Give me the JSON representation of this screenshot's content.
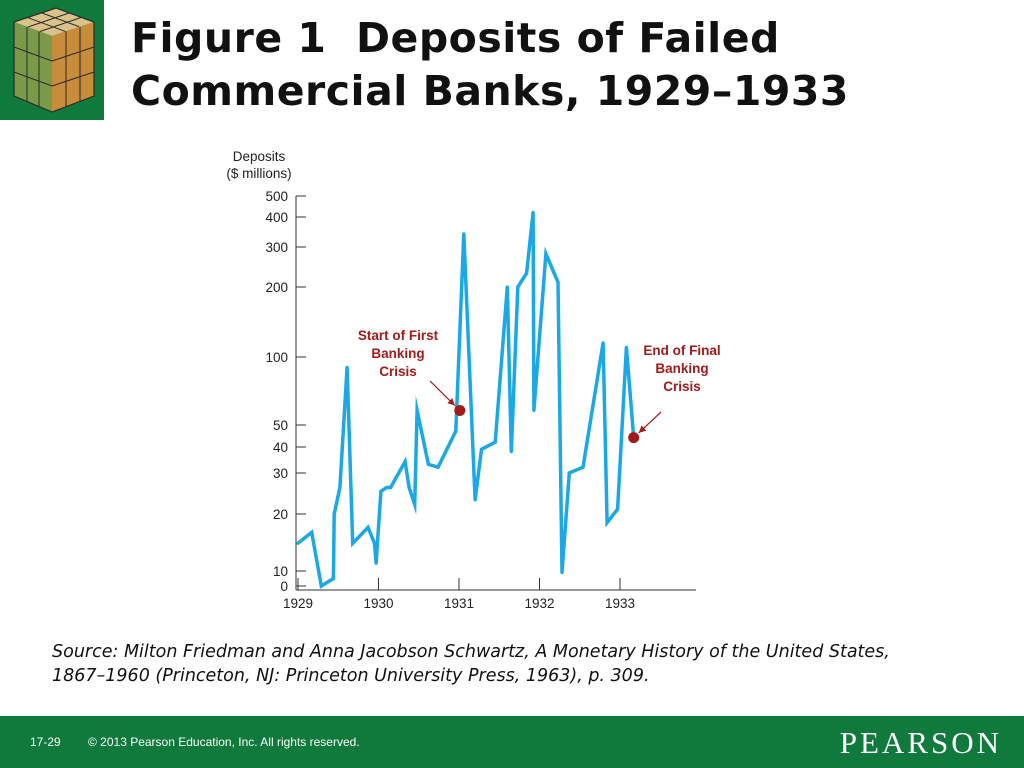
{
  "slide": {
    "title_line1": "Figure 1  Deposits of Failed",
    "title_line2": "Commercial Banks, 1929–1933",
    "source_line1": "Source: Milton Friedman and Anna Jacobson Schwartz, A Monetary History of the United States,",
    "source_line2": "1867–1960 (Princeton, NJ: Princeton University Press, 1963), p. 309.",
    "page_number": "17-29",
    "copyright": "© 2013 Pearson Education, Inc. All rights reserved.",
    "brand": "PEARSON"
  },
  "colors": {
    "green": "#0f7a3c",
    "line": "#1aa9e6",
    "annotation": "#a31a1a"
  },
  "chart_data": {
    "type": "line",
    "ylabel": "Deposits\n($ millions)",
    "xlabel": "",
    "y_ticks": [
      0,
      10,
      20,
      30,
      40,
      50,
      100,
      200,
      300,
      400,
      500
    ],
    "x_ticks": [
      "1929",
      "1930",
      "1931",
      "1932",
      "1933"
    ],
    "x_range": [
      1929,
      1934
    ],
    "y_scale": "log-like (compressed near 0)",
    "series": [
      {
        "x": [
          1929.0,
          1929.17,
          1929.29,
          1929.44,
          1929.45,
          1929.52,
          1929.61,
          1929.68,
          1929.87,
          1929.95,
          1929.97,
          1930.03,
          1930.1,
          1930.15,
          1930.33,
          1930.38,
          1930.45,
          1930.48,
          1930.62,
          1930.74,
          1930.96,
          1931.06,
          1931.2,
          1931.28,
          1931.45,
          1931.6,
          1931.65,
          1931.73,
          1931.84,
          1931.92,
          1931.93,
          1932.08,
          1932.23,
          1932.28,
          1932.37,
          1932.54,
          1932.79,
          1932.84,
          1932.97,
          1933.08,
          1933.17
        ],
        "y": [
          14,
          16,
          0,
          5,
          20,
          26,
          90,
          14,
          17,
          14,
          11,
          25,
          26,
          26,
          34,
          26,
          22,
          58,
          33,
          32,
          47,
          340,
          23,
          39,
          42,
          200,
          38,
          200,
          230,
          420,
          58,
          280,
          210,
          9,
          30,
          32,
          115,
          18,
          21,
          110,
          44
        ]
      }
    ],
    "annotations": [
      {
        "text_lines": [
          "Start of First",
          "Banking",
          "Crisis"
        ],
        "point": [
          1931.01,
          58
        ]
      },
      {
        "text_lines": [
          "End of Final",
          "Banking",
          "Crisis"
        ],
        "point": [
          1933.17,
          44
        ]
      }
    ]
  }
}
